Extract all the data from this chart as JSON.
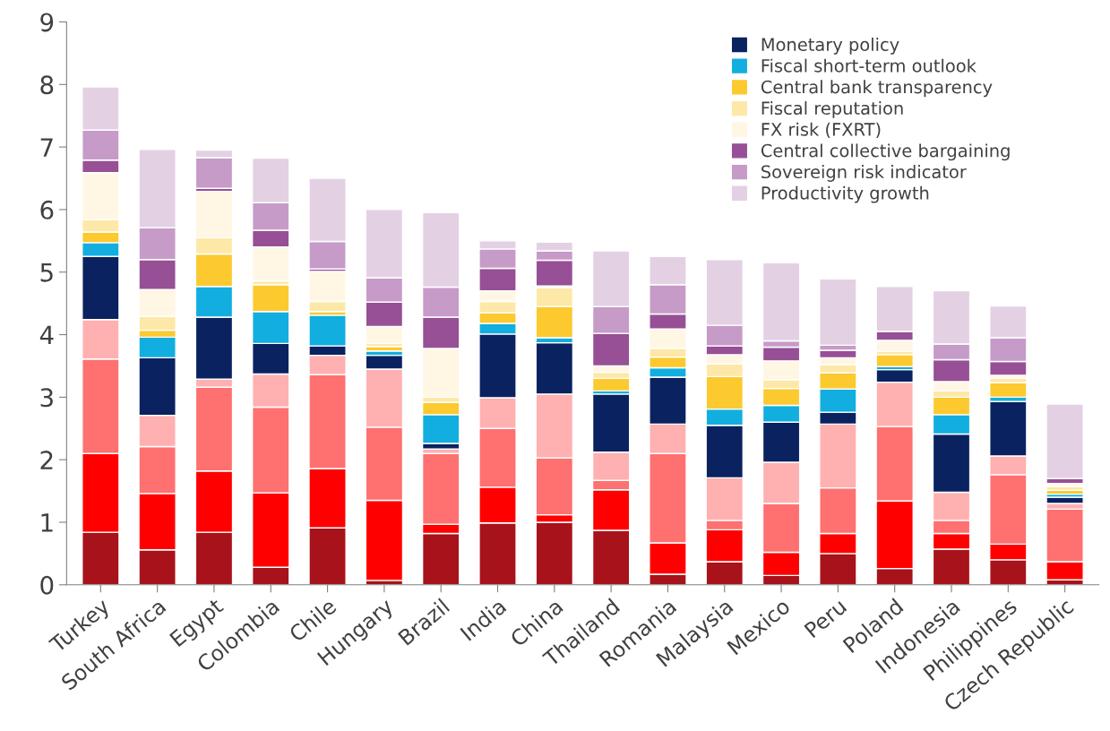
{
  "chart_data": {
    "type": "bar",
    "stacked": true,
    "categories": [
      "Turkey",
      "South Africa",
      "Egypt",
      "Colombia",
      "Chile",
      "Hungary",
      "Brazil",
      "India",
      "China",
      "Thailand",
      "Romania",
      "Malaysia",
      "Mexico",
      "Peru",
      "Poland",
      "Indonesia",
      "Philippines",
      "Czech Republic"
    ],
    "ylim": [
      0,
      9
    ],
    "yticks": [
      0,
      1,
      2,
      3,
      4,
      5,
      6,
      7,
      8,
      9
    ],
    "grid": false,
    "legend": "top right",
    "series": [
      {
        "color": "#a8121a",
        "values": [
          0.84,
          0.56,
          0.84,
          0.28,
          0.91,
          0.07,
          0.82,
          0.99,
          1.0,
          0.87,
          0.17,
          0.37,
          0.15,
          0.5,
          0.26,
          0.57,
          0.4,
          0.08
        ]
      },
      {
        "color": "#ff0000",
        "values": [
          1.26,
          0.9,
          0.98,
          1.19,
          0.95,
          1.28,
          0.15,
          0.57,
          0.12,
          0.65,
          0.5,
          0.51,
          0.37,
          0.32,
          1.08,
          0.25,
          0.25,
          0.29
        ]
      },
      {
        "color": "#ff7070",
        "values": [
          1.51,
          0.75,
          1.34,
          1.37,
          1.5,
          1.17,
          1.13,
          0.94,
          0.91,
          0.15,
          1.43,
          0.15,
          0.78,
          0.73,
          1.19,
          0.21,
          1.11,
          0.84
        ]
      },
      {
        "color": "#ffb0b0",
        "values": [
          0.63,
          0.5,
          0.13,
          0.53,
          0.31,
          0.93,
          0.07,
          0.49,
          1.02,
          0.45,
          0.47,
          0.68,
          0.66,
          1.02,
          0.71,
          0.45,
          0.3,
          0.09
        ]
      },
      {
        "name": "Monetary policy",
        "color": "#0b2260",
        "values": [
          1.01,
          0.92,
          0.99,
          0.49,
          0.15,
          0.22,
          0.09,
          1.02,
          0.82,
          0.93,
          0.75,
          0.84,
          0.64,
          0.19,
          0.2,
          0.93,
          0.87,
          0.1
        ]
      },
      {
        "name": "Fiscal short-term outlook",
        "color": "#12aee0",
        "values": [
          0.22,
          0.33,
          0.49,
          0.51,
          0.49,
          0.07,
          0.46,
          0.17,
          0.08,
          0.05,
          0.15,
          0.26,
          0.27,
          0.37,
          0.05,
          0.31,
          0.07,
          0.05
        ]
      },
      {
        "name": "Central bank transparency",
        "color": "#fcc92f",
        "values": [
          0.17,
          0.11,
          0.52,
          0.43,
          0.06,
          0.07,
          0.2,
          0.17,
          0.5,
          0.2,
          0.17,
          0.52,
          0.27,
          0.26,
          0.19,
          0.28,
          0.23,
          0.06
        ]
      },
      {
        "name": "Fiscal reputation",
        "color": "#fde8a8",
        "values": [
          0.2,
          0.22,
          0.26,
          0.06,
          0.16,
          0.05,
          0.08,
          0.18,
          0.3,
          0.1,
          0.14,
          0.2,
          0.14,
          0.13,
          0.05,
          0.1,
          0.07,
          0.06
        ]
      },
      {
        "name": "FX risk (FXRT)",
        "color": "#fff6e4",
        "values": [
          0.75,
          0.43,
          0.74,
          0.54,
          0.48,
          0.27,
          0.78,
          0.17,
          0.03,
          0.1,
          0.31,
          0.15,
          0.3,
          0.11,
          0.18,
          0.15,
          0.05,
          0.05
        ]
      },
      {
        "name": "Central collective bargaining",
        "color": "#974f95",
        "values": [
          0.2,
          0.48,
          0.05,
          0.27,
          0.04,
          0.39,
          0.5,
          0.36,
          0.41,
          0.52,
          0.24,
          0.14,
          0.22,
          0.12,
          0.14,
          0.35,
          0.22,
          0.08
        ]
      },
      {
        "name": "Sovereign risk indicator",
        "color": "#c69bc8",
        "values": [
          0.48,
          0.51,
          0.49,
          0.44,
          0.44,
          0.39,
          0.48,
          0.31,
          0.15,
          0.43,
          0.47,
          0.33,
          0.1,
          0.08,
          null,
          0.25,
          0.38,
          null
        ]
      },
      {
        "name": "Productivity growth",
        "color": "#e3d1e3",
        "values": [
          0.69,
          1.25,
          0.12,
          0.71,
          1.01,
          1.09,
          1.19,
          0.13,
          0.14,
          0.89,
          0.45,
          1.05,
          1.25,
          1.06,
          0.72,
          0.85,
          0.51,
          1.19
        ]
      }
    ]
  }
}
